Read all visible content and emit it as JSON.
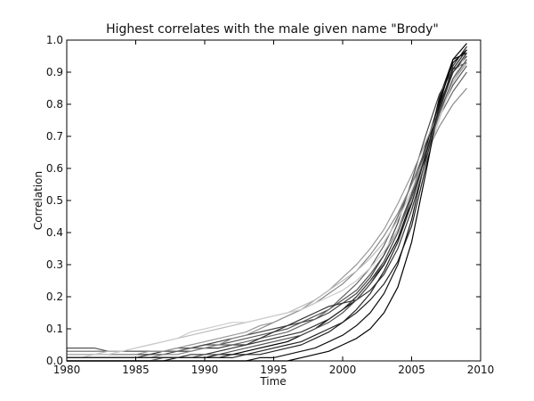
{
  "chart_data": {
    "type": "line",
    "title": "Highest correlates with the male given name \"Brody\"",
    "xlabel": "Time",
    "ylabel": "Correlation",
    "xlim": [
      1980,
      2010
    ],
    "ylim": [
      0.0,
      1.0
    ],
    "xticks": [
      1980,
      1985,
      1990,
      1995,
      2000,
      2005,
      2010
    ],
    "yticks": [
      0.0,
      0.1,
      0.2,
      0.3,
      0.4,
      0.5,
      0.6,
      0.7,
      0.8,
      0.9,
      1.0
    ],
    "ytick_labels": [
      "0.0",
      "0.1",
      "0.2",
      "0.3",
      "0.4",
      "0.5",
      "0.6",
      "0.7",
      "0.8",
      "0.9",
      "1.0"
    ],
    "grid": false,
    "legend": "none",
    "line_color_range": [
      "#000000",
      "#dddddd"
    ],
    "x": [
      1980,
      1981,
      1982,
      1983,
      1984,
      1985,
      1986,
      1987,
      1988,
      1989,
      1990,
      1991,
      1992,
      1993,
      1994,
      1995,
      1996,
      1997,
      1998,
      1999,
      2000,
      2001,
      2002,
      2003,
      2004,
      2005,
      2006,
      2007,
      2008,
      2009
    ],
    "series": [
      {
        "color": "#000000",
        "values": [
          0.01,
          0.01,
          0.01,
          0.01,
          0.01,
          0.01,
          0.01,
          0.01,
          0.01,
          0.01,
          0.01,
          0.02,
          0.02,
          0.03,
          0.04,
          0.05,
          0.06,
          0.08,
          0.1,
          0.13,
          0.16,
          0.19,
          0.24,
          0.3,
          0.38,
          0.5,
          0.66,
          0.81,
          0.93,
          0.97
        ]
      },
      {
        "color": "#222222",
        "values": [
          0.0,
          0.0,
          0.0,
          0.0,
          0.0,
          0.0,
          0.0,
          0.0,
          0.01,
          0.01,
          0.01,
          0.01,
          0.02,
          0.02,
          0.03,
          0.04,
          0.05,
          0.06,
          0.08,
          0.1,
          0.12,
          0.15,
          0.19,
          0.24,
          0.31,
          0.42,
          0.6,
          0.78,
          0.92,
          0.98
        ]
      },
      {
        "color": "#333333",
        "values": [
          0.02,
          0.02,
          0.02,
          0.02,
          0.02,
          0.02,
          0.02,
          0.03,
          0.03,
          0.03,
          0.04,
          0.04,
          0.05,
          0.05,
          0.06,
          0.07,
          0.08,
          0.09,
          0.11,
          0.13,
          0.16,
          0.2,
          0.25,
          0.31,
          0.4,
          0.52,
          0.67,
          0.8,
          0.9,
          0.95
        ]
      },
      {
        "color": "#555555",
        "values": [
          0.04,
          0.04,
          0.04,
          0.03,
          0.03,
          0.03,
          0.03,
          0.03,
          0.04,
          0.04,
          0.05,
          0.05,
          0.06,
          0.07,
          0.08,
          0.09,
          0.1,
          0.12,
          0.14,
          0.16,
          0.19,
          0.22,
          0.27,
          0.33,
          0.41,
          0.52,
          0.65,
          0.77,
          0.86,
          0.92
        ]
      },
      {
        "color": "#111111",
        "values": [
          0.0,
          0.0,
          0.0,
          0.0,
          0.0,
          0.0,
          0.0,
          0.0,
          0.0,
          0.0,
          0.0,
          0.0,
          0.0,
          0.0,
          0.01,
          0.01,
          0.02,
          0.03,
          0.04,
          0.06,
          0.08,
          0.11,
          0.15,
          0.21,
          0.3,
          0.44,
          0.63,
          0.82,
          0.94,
          0.96
        ]
      },
      {
        "color": "#444444",
        "values": [
          0.01,
          0.01,
          0.01,
          0.01,
          0.01,
          0.01,
          0.02,
          0.02,
          0.03,
          0.04,
          0.05,
          0.06,
          0.07,
          0.08,
          0.09,
          0.1,
          0.11,
          0.12,
          0.13,
          0.15,
          0.18,
          0.21,
          0.26,
          0.33,
          0.43,
          0.56,
          0.7,
          0.83,
          0.91,
          0.93
        ]
      },
      {
        "color": "#666666",
        "values": [
          0.03,
          0.03,
          0.03,
          0.03,
          0.03,
          0.03,
          0.03,
          0.03,
          0.03,
          0.04,
          0.04,
          0.05,
          0.05,
          0.06,
          0.07,
          0.08,
          0.09,
          0.11,
          0.13,
          0.16,
          0.2,
          0.24,
          0.29,
          0.36,
          0.45,
          0.55,
          0.66,
          0.76,
          0.84,
          0.9
        ]
      },
      {
        "color": "#888888",
        "values": [
          0.01,
          0.01,
          0.01,
          0.01,
          0.01,
          0.01,
          0.01,
          0.02,
          0.02,
          0.03,
          0.04,
          0.05,
          0.07,
          0.08,
          0.1,
          0.12,
          0.14,
          0.16,
          0.18,
          0.21,
          0.24,
          0.28,
          0.33,
          0.39,
          0.46,
          0.55,
          0.64,
          0.73,
          0.8,
          0.85
        ]
      },
      {
        "color": "#999999",
        "values": [
          0.02,
          0.02,
          0.02,
          0.02,
          0.02,
          0.02,
          0.03,
          0.03,
          0.04,
          0.05,
          0.06,
          0.07,
          0.08,
          0.09,
          0.11,
          0.12,
          0.14,
          0.16,
          0.19,
          0.22,
          0.26,
          0.3,
          0.35,
          0.41,
          0.49,
          0.58,
          0.68,
          0.78,
          0.87,
          0.93
        ]
      },
      {
        "color": "#bbbbbb",
        "values": [
          0.02,
          0.02,
          0.02,
          0.03,
          0.03,
          0.04,
          0.05,
          0.06,
          0.07,
          0.08,
          0.09,
          0.1,
          0.11,
          0.12,
          0.13,
          0.14,
          0.15,
          0.17,
          0.19,
          0.22,
          0.25,
          0.28,
          0.32,
          0.37,
          0.44,
          0.53,
          0.64,
          0.76,
          0.87,
          0.94
        ]
      },
      {
        "color": "#cccccc",
        "values": [
          0.01,
          0.01,
          0.02,
          0.02,
          0.03,
          0.04,
          0.05,
          0.06,
          0.07,
          0.09,
          0.1,
          0.11,
          0.12,
          0.12,
          0.13,
          0.14,
          0.15,
          0.16,
          0.18,
          0.2,
          0.22,
          0.25,
          0.29,
          0.34,
          0.41,
          0.5,
          0.62,
          0.75,
          0.88,
          0.96
        ]
      },
      {
        "color": "#000000",
        "values": [
          0.0,
          0.0,
          0.0,
          0.0,
          0.0,
          0.0,
          0.0,
          0.0,
          0.0,
          0.0,
          0.0,
          0.0,
          0.0,
          0.0,
          0.0,
          0.0,
          0.0,
          0.01,
          0.02,
          0.03,
          0.05,
          0.07,
          0.1,
          0.15,
          0.23,
          0.37,
          0.58,
          0.8,
          0.94,
          0.99
        ]
      },
      {
        "color": "#333333",
        "values": [
          0.01,
          0.01,
          0.01,
          0.01,
          0.01,
          0.01,
          0.01,
          0.01,
          0.01,
          0.02,
          0.02,
          0.03,
          0.04,
          0.05,
          0.07,
          0.09,
          0.11,
          0.13,
          0.15,
          0.17,
          0.18,
          0.19,
          0.22,
          0.27,
          0.35,
          0.47,
          0.62,
          0.78,
          0.9,
          0.96
        ]
      },
      {
        "color": "#555555",
        "values": [
          0.0,
          0.0,
          0.0,
          0.0,
          0.0,
          0.0,
          0.0,
          0.01,
          0.01,
          0.01,
          0.02,
          0.02,
          0.03,
          0.04,
          0.05,
          0.06,
          0.07,
          0.08,
          0.1,
          0.12,
          0.15,
          0.19,
          0.24,
          0.31,
          0.4,
          0.51,
          0.64,
          0.77,
          0.88,
          0.94
        ]
      },
      {
        "color": "#222222",
        "values": [
          0.01,
          0.01,
          0.01,
          0.01,
          0.01,
          0.01,
          0.01,
          0.01,
          0.01,
          0.01,
          0.01,
          0.01,
          0.01,
          0.02,
          0.02,
          0.03,
          0.04,
          0.05,
          0.07,
          0.09,
          0.12,
          0.16,
          0.21,
          0.28,
          0.37,
          0.49,
          0.64,
          0.79,
          0.91,
          0.97
        ]
      }
    ]
  }
}
